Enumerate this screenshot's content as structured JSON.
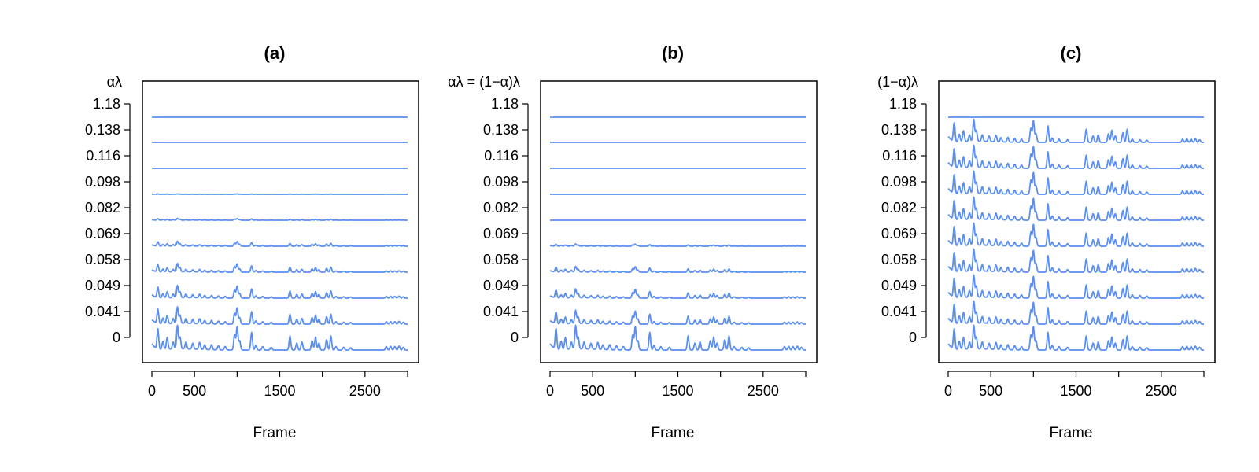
{
  "figure": {
    "line_color": "#5b8ff0"
  },
  "chart_data": [
    {
      "type": "line",
      "title": "(a)",
      "ylabel": "αλ",
      "xlabel": "Frame",
      "xlim": [
        0,
        3000
      ],
      "x_ticks": [
        "0",
        "500",
        "1500",
        "2500"
      ],
      "x_tick_values": [
        0,
        500,
        1000,
        1500,
        2000,
        2500,
        3000
      ],
      "y_tick_labels": [
        "0",
        "0.041",
        "0.049",
        "0.058",
        "0.069",
        "0.082",
        "0.098",
        "0.116",
        "0.138",
        "1.18"
      ],
      "series_strength": [
        1.0,
        0.75,
        0.55,
        0.38,
        0.22,
        0.08,
        0.02,
        0,
        0,
        0
      ]
    },
    {
      "type": "line",
      "title": "(b)",
      "ylabel": "αλ = (1−α)λ",
      "xlabel": "Frame",
      "xlim": [
        0,
        3000
      ],
      "x_ticks": [
        "0",
        "500",
        "1500",
        "2500"
      ],
      "x_tick_values": [
        0,
        500,
        1000,
        1500,
        2000,
        2500,
        3000
      ],
      "y_tick_labels": [
        "0",
        "0.041",
        "0.049",
        "0.058",
        "0.069",
        "0.082",
        "0.098",
        "0.116",
        "0.138",
        "1.18"
      ],
      "series_strength": [
        1.0,
        0.6,
        0.4,
        0.25,
        0.1,
        0,
        0,
        0,
        0,
        0
      ]
    },
    {
      "type": "line",
      "title": "(c)",
      "ylabel": "(1−α)λ",
      "xlabel": "Frame",
      "xlim": [
        0,
        3000
      ],
      "x_ticks": [
        "0",
        "500",
        "1500",
        "2500"
      ],
      "x_tick_values": [
        0,
        500,
        1000,
        1500,
        2000,
        2500,
        3000
      ],
      "y_tick_labels": [
        "0",
        "0.041",
        "0.049",
        "0.058",
        "0.069",
        "0.082",
        "0.098",
        "0.116",
        "0.138",
        "1.18"
      ],
      "series_strength": [
        1.0,
        1.0,
        1.0,
        1.0,
        1.0,
        1.0,
        1.0,
        1.0,
        1.0,
        0
      ]
    }
  ]
}
